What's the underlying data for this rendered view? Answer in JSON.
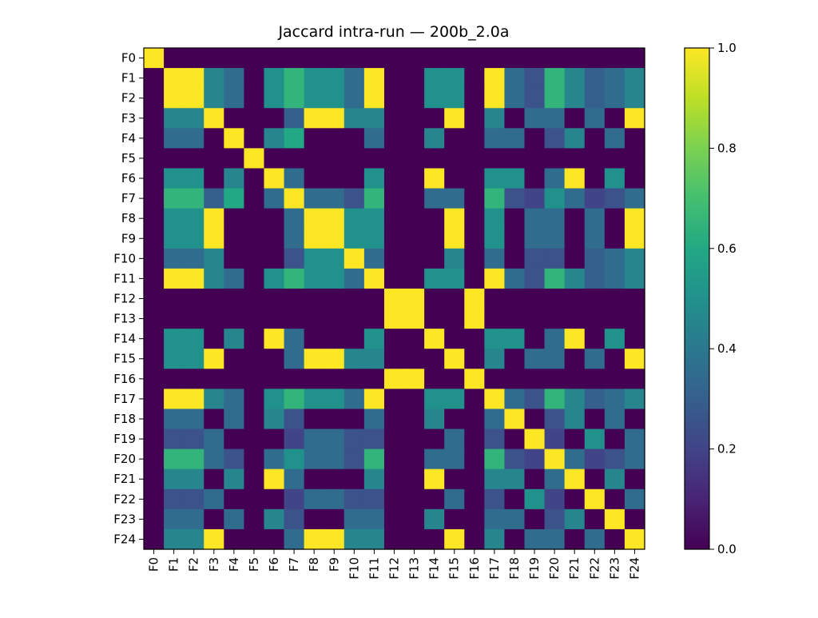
{
  "chart_data": {
    "type": "heatmap",
    "title": "Jaccard intra-run — 200b_2.0a",
    "xlabel": "",
    "ylabel": "",
    "x_labels": [
      "F0",
      "F1",
      "F2",
      "F3",
      "F4",
      "F5",
      "F6",
      "F7",
      "F8",
      "F9",
      "F10",
      "F11",
      "F12",
      "F13",
      "F14",
      "F15",
      "F16",
      "F17",
      "F18",
      "F19",
      "F20",
      "F21",
      "F22",
      "F23",
      "F24"
    ],
    "y_labels": [
      "F0",
      "F1",
      "F2",
      "F3",
      "F4",
      "F5",
      "F6",
      "F7",
      "F8",
      "F9",
      "F10",
      "F11",
      "F12",
      "F13",
      "F14",
      "F15",
      "F16",
      "F17",
      "F18",
      "F19",
      "F20",
      "F21",
      "F22",
      "F23",
      "F24"
    ],
    "colorbar": {
      "colormap": "viridis",
      "vmin": 0.0,
      "vmax": 1.0,
      "ticks": [
        "0.0",
        "0.2",
        "0.4",
        "0.6",
        "0.8",
        "1.0"
      ],
      "tick_values": [
        0.0,
        0.2,
        0.4,
        0.6,
        0.8,
        1.0
      ]
    },
    "grid": false,
    "legend": "none",
    "values": [
      [
        1.0,
        0.0,
        0.0,
        0.0,
        0.0,
        0.0,
        0.0,
        0.0,
        0.0,
        0.0,
        0.0,
        0.0,
        0.0,
        0.0,
        0.0,
        0.0,
        0.0,
        0.0,
        0.0,
        0.0,
        0.0,
        0.0,
        0.0,
        0.0,
        0.0
      ],
      [
        0.0,
        1.0,
        1.0,
        0.45,
        0.35,
        0.0,
        0.5,
        0.65,
        0.5,
        0.5,
        0.35,
        1.0,
        0.0,
        0.0,
        0.5,
        0.5,
        0.0,
        1.0,
        0.35,
        0.25,
        0.65,
        0.45,
        0.3,
        0.35,
        0.45
      ],
      [
        0.0,
        1.0,
        1.0,
        0.45,
        0.35,
        0.0,
        0.5,
        0.65,
        0.5,
        0.5,
        0.35,
        1.0,
        0.0,
        0.0,
        0.5,
        0.5,
        0.0,
        1.0,
        0.35,
        0.25,
        0.65,
        0.45,
        0.3,
        0.35,
        0.45
      ],
      [
        0.0,
        0.45,
        0.45,
        1.0,
        0.0,
        0.0,
        0.0,
        0.3,
        1.0,
        1.0,
        0.45,
        0.45,
        0.0,
        0.0,
        0.0,
        1.0,
        0.0,
        0.45,
        0.0,
        0.35,
        0.35,
        0.0,
        0.35,
        0.0,
        1.0
      ],
      [
        0.0,
        0.35,
        0.35,
        0.0,
        1.0,
        0.0,
        0.45,
        0.6,
        0.0,
        0.0,
        0.0,
        0.35,
        0.0,
        0.0,
        0.45,
        0.0,
        0.0,
        0.35,
        0.35,
        0.0,
        0.25,
        0.45,
        0.0,
        0.35,
        0.0
      ],
      [
        0.0,
        0.0,
        0.0,
        0.0,
        0.0,
        1.0,
        0.0,
        0.0,
        0.0,
        0.0,
        0.0,
        0.0,
        0.0,
        0.0,
        0.0,
        0.0,
        0.0,
        0.0,
        0.0,
        0.0,
        0.0,
        0.0,
        0.0,
        0.0,
        0.0
      ],
      [
        0.0,
        0.5,
        0.5,
        0.0,
        0.45,
        0.0,
        1.0,
        0.35,
        0.0,
        0.0,
        0.0,
        0.5,
        0.0,
        0.0,
        1.0,
        0.0,
        0.0,
        0.5,
        0.5,
        0.0,
        0.35,
        1.0,
        0.0,
        0.5,
        0.0
      ],
      [
        0.0,
        0.65,
        0.65,
        0.3,
        0.6,
        0.0,
        0.35,
        1.0,
        0.35,
        0.35,
        0.25,
        0.65,
        0.0,
        0.0,
        0.35,
        0.35,
        0.0,
        0.65,
        0.25,
        0.2,
        0.5,
        0.35,
        0.2,
        0.25,
        0.35
      ],
      [
        0.0,
        0.5,
        0.5,
        1.0,
        0.0,
        0.0,
        0.0,
        0.35,
        1.0,
        1.0,
        0.5,
        0.5,
        0.0,
        0.0,
        0.0,
        1.0,
        0.0,
        0.5,
        0.0,
        0.35,
        0.35,
        0.0,
        0.35,
        0.0,
        1.0
      ],
      [
        0.0,
        0.5,
        0.5,
        1.0,
        0.0,
        0.0,
        0.0,
        0.35,
        1.0,
        1.0,
        0.5,
        0.5,
        0.0,
        0.0,
        0.0,
        1.0,
        0.0,
        0.5,
        0.0,
        0.35,
        0.35,
        0.0,
        0.35,
        0.0,
        1.0
      ],
      [
        0.0,
        0.35,
        0.35,
        0.45,
        0.0,
        0.0,
        0.0,
        0.25,
        0.5,
        0.5,
        1.0,
        0.35,
        0.0,
        0.0,
        0.0,
        0.45,
        0.0,
        0.35,
        0.0,
        0.25,
        0.25,
        0.0,
        0.3,
        0.35,
        0.45
      ],
      [
        0.0,
        1.0,
        1.0,
        0.45,
        0.35,
        0.0,
        0.5,
        0.65,
        0.5,
        0.5,
        0.35,
        1.0,
        0.0,
        0.0,
        0.5,
        0.5,
        0.0,
        1.0,
        0.35,
        0.25,
        0.65,
        0.45,
        0.3,
        0.35,
        0.45
      ],
      [
        0.0,
        0.0,
        0.0,
        0.0,
        0.0,
        0.0,
        0.0,
        0.0,
        0.0,
        0.0,
        0.0,
        0.0,
        1.0,
        1.0,
        0.0,
        0.0,
        1.0,
        0.0,
        0.0,
        0.0,
        0.0,
        0.0,
        0.0,
        0.0,
        0.0
      ],
      [
        0.0,
        0.0,
        0.0,
        0.0,
        0.0,
        0.0,
        0.0,
        0.0,
        0.0,
        0.0,
        0.0,
        0.0,
        1.0,
        1.0,
        0.0,
        0.0,
        1.0,
        0.0,
        0.0,
        0.0,
        0.0,
        0.0,
        0.0,
        0.0,
        0.0
      ],
      [
        0.0,
        0.5,
        0.5,
        0.0,
        0.45,
        0.0,
        1.0,
        0.35,
        0.0,
        0.0,
        0.0,
        0.5,
        0.0,
        0.0,
        1.0,
        0.0,
        0.0,
        0.5,
        0.5,
        0.0,
        0.35,
        1.0,
        0.0,
        0.5,
        0.0
      ],
      [
        0.0,
        0.5,
        0.5,
        1.0,
        0.0,
        0.0,
        0.0,
        0.35,
        1.0,
        1.0,
        0.45,
        0.45,
        0.0,
        0.0,
        0.0,
        1.0,
        0.0,
        0.45,
        0.0,
        0.35,
        0.35,
        0.0,
        0.35,
        0.0,
        1.0
      ],
      [
        0.0,
        0.0,
        0.0,
        0.0,
        0.0,
        0.0,
        0.0,
        0.0,
        0.0,
        0.0,
        0.0,
        0.0,
        1.0,
        1.0,
        0.0,
        0.0,
        1.0,
        0.0,
        0.0,
        0.0,
        0.0,
        0.0,
        0.0,
        0.0,
        0.0
      ],
      [
        0.0,
        1.0,
        1.0,
        0.45,
        0.35,
        0.0,
        0.5,
        0.65,
        0.5,
        0.5,
        0.35,
        1.0,
        0.0,
        0.0,
        0.5,
        0.5,
        0.0,
        1.0,
        0.35,
        0.25,
        0.65,
        0.45,
        0.3,
        0.35,
        0.45
      ],
      [
        0.0,
        0.35,
        0.35,
        0.0,
        0.35,
        0.0,
        0.45,
        0.25,
        0.0,
        0.0,
        0.0,
        0.35,
        0.0,
        0.0,
        0.45,
        0.0,
        0.0,
        0.35,
        1.0,
        0.0,
        0.25,
        0.45,
        0.0,
        0.35,
        0.0
      ],
      [
        0.0,
        0.25,
        0.25,
        0.35,
        0.0,
        0.0,
        0.0,
        0.2,
        0.35,
        0.35,
        0.25,
        0.25,
        0.0,
        0.0,
        0.0,
        0.35,
        0.0,
        0.25,
        0.0,
        1.0,
        0.2,
        0.0,
        0.5,
        0.0,
        0.35
      ],
      [
        0.0,
        0.65,
        0.65,
        0.35,
        0.25,
        0.0,
        0.35,
        0.5,
        0.35,
        0.35,
        0.25,
        0.65,
        0.0,
        0.0,
        0.35,
        0.35,
        0.0,
        0.65,
        0.25,
        0.2,
        1.0,
        0.35,
        0.2,
        0.25,
        0.35
      ],
      [
        0.0,
        0.45,
        0.45,
        0.0,
        0.45,
        0.0,
        1.0,
        0.35,
        0.0,
        0.0,
        0.0,
        0.45,
        0.0,
        0.0,
        1.0,
        0.0,
        0.0,
        0.45,
        0.45,
        0.0,
        0.35,
        1.0,
        0.0,
        0.45,
        0.0
      ],
      [
        0.0,
        0.25,
        0.25,
        0.35,
        0.0,
        0.0,
        0.0,
        0.2,
        0.35,
        0.35,
        0.25,
        0.25,
        0.0,
        0.0,
        0.0,
        0.35,
        0.0,
        0.25,
        0.0,
        0.5,
        0.2,
        0.0,
        1.0,
        0.0,
        0.35
      ],
      [
        0.0,
        0.35,
        0.35,
        0.0,
        0.35,
        0.0,
        0.45,
        0.25,
        0.0,
        0.0,
        0.35,
        0.35,
        0.0,
        0.0,
        0.45,
        0.0,
        0.0,
        0.35,
        0.35,
        0.0,
        0.25,
        0.45,
        0.0,
        1.0,
        0.0
      ],
      [
        0.0,
        0.45,
        0.45,
        1.0,
        0.0,
        0.0,
        0.0,
        0.35,
        1.0,
        1.0,
        0.45,
        0.45,
        0.0,
        0.0,
        0.0,
        1.0,
        0.0,
        0.45,
        0.0,
        0.35,
        0.35,
        0.0,
        0.35,
        0.0,
        1.0
      ]
    ]
  }
}
